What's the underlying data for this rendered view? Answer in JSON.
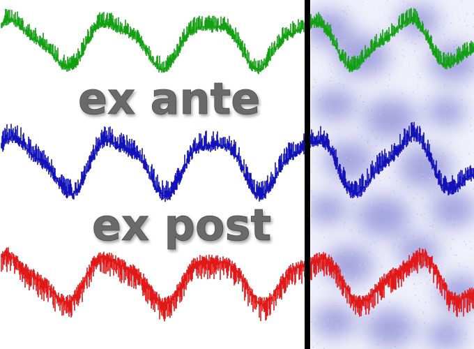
{
  "labels": {
    "top": "ex ante",
    "bottom": "ex post"
  },
  "colors": {
    "green_series": "#12a012",
    "blue_series": "#1212b8",
    "red_series": "#e01818",
    "divider": "#000000",
    "noise_blobs": "#8c8cd8",
    "label_fill": "#6b6b6b"
  }
}
